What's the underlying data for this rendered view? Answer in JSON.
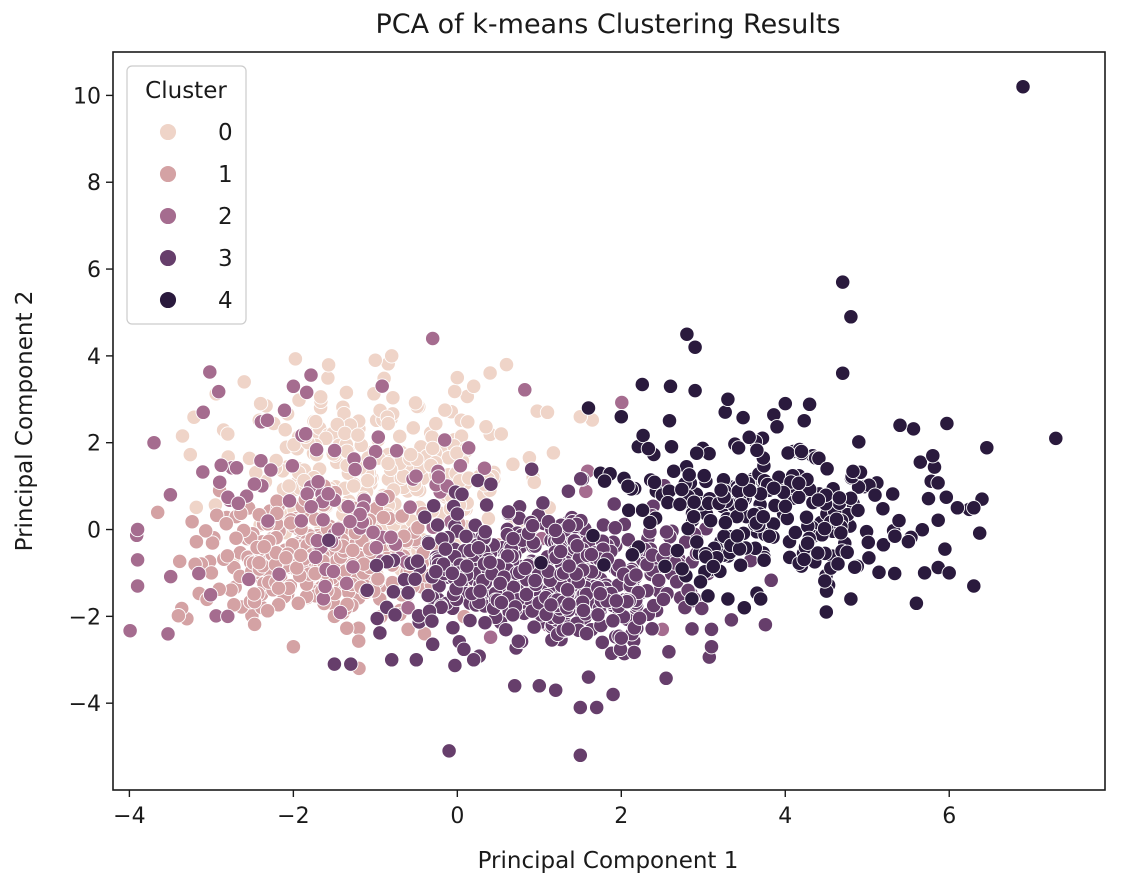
{
  "chart_data": {
    "type": "scatter",
    "title": "PCA of k-means Clustering Results",
    "xlabel": "Principal Component 1",
    "ylabel": "Principal Component 2",
    "xlim": [
      -4.2,
      7.9
    ],
    "ylim": [
      -6.0,
      11.0
    ],
    "xticks": [
      -4,
      -2,
      0,
      2,
      4,
      6
    ],
    "yticks": [
      -4,
      -2,
      0,
      2,
      4,
      6,
      8,
      10
    ],
    "grid": false,
    "legend": {
      "title": "Cluster",
      "placement": "upper-left"
    },
    "series": [
      {
        "name": "0",
        "color": "#efd4c8",
        "clouds": [
          {
            "n": 300,
            "cx": -1.0,
            "cy": 1.3,
            "sx": 0.9,
            "sy": 0.95
          }
        ],
        "points": [
          [
            -0.3,
            4.4
          ],
          [
            0.6,
            3.8
          ],
          [
            -0.8,
            4.0
          ],
          [
            -1.0,
            3.9
          ],
          [
            -2.6,
            3.4
          ],
          [
            -2.4,
            2.9
          ],
          [
            1.5,
            2.6
          ],
          [
            1.1,
            2.7
          ],
          [
            -2.8,
            2.2
          ],
          [
            -2.1,
            2.3
          ],
          [
            0.0,
            3.5
          ],
          [
            0.2,
            3.3
          ]
        ]
      },
      {
        "name": "1",
        "color": "#d4a2a4",
        "clouds": [
          {
            "n": 340,
            "cx": -1.7,
            "cy": -0.7,
            "sx": 0.75,
            "sy": 0.65
          }
        ],
        "points": [
          [
            -2.0,
            -2.7
          ],
          [
            -1.2,
            -3.2
          ],
          [
            -3.0,
            -1.0
          ],
          [
            -2.7,
            -0.2
          ],
          [
            -0.4,
            -2.4
          ],
          [
            -0.6,
            -2.3
          ],
          [
            -2.9,
            0.9
          ],
          [
            -1.5,
            -2.0
          ]
        ]
      },
      {
        "name": "2",
        "color": "#a56c8f",
        "clouds": [
          {
            "n": 110,
            "cx": -1.2,
            "cy": 0.5,
            "sx": 1.3,
            "sy": 1.2
          }
        ],
        "points": [
          [
            -3.7,
            2.0
          ],
          [
            -3.5,
            0.8
          ],
          [
            -3.9,
            0.0
          ],
          [
            -3.9,
            -0.7
          ],
          [
            -3.9,
            -1.3
          ],
          [
            -3.1,
            2.7
          ],
          [
            -2.8,
            -2.0
          ],
          [
            -2.0,
            3.3
          ],
          [
            -0.3,
            4.4
          ],
          [
            1.1,
            -2.2
          ],
          [
            1.7,
            -1.7
          ],
          [
            2.5,
            -2.3
          ],
          [
            -0.6,
            -1.8
          ]
        ]
      },
      {
        "name": "3",
        "color": "#663e6b",
        "clouds": [
          {
            "n": 600,
            "cx": 1.1,
            "cy": -1.1,
            "sx": 0.85,
            "sy": 0.8
          }
        ],
        "points": [
          [
            -0.1,
            -5.1
          ],
          [
            1.5,
            -5.2
          ],
          [
            1.5,
            -4.1
          ],
          [
            1.7,
            -4.1
          ],
          [
            1.9,
            -3.8
          ],
          [
            1.0,
            -3.6
          ],
          [
            0.7,
            -3.6
          ],
          [
            1.2,
            -3.7
          ],
          [
            0.2,
            -3.0
          ],
          [
            -0.5,
            -3.0
          ],
          [
            -0.8,
            -3.0
          ],
          [
            -1.3,
            -3.1
          ],
          [
            -1.5,
            -3.1
          ],
          [
            3.1,
            -2.3
          ],
          [
            3.1,
            -2.7
          ],
          [
            1.6,
            -3.4
          ],
          [
            2.0,
            -2.5
          ],
          [
            -1.1,
            -1.4
          ]
        ]
      },
      {
        "name": "4",
        "color": "#2a1a3d",
        "clouds": [
          {
            "n": 280,
            "cx": 3.9,
            "cy": 0.4,
            "sx": 1.05,
            "sy": 0.9
          }
        ],
        "points": [
          [
            6.9,
            10.2
          ],
          [
            7.3,
            2.1
          ],
          [
            4.7,
            5.7
          ],
          [
            4.8,
            4.9
          ],
          [
            4.7,
            3.6
          ],
          [
            2.8,
            4.5
          ],
          [
            2.9,
            4.2
          ],
          [
            2.6,
            3.3
          ],
          [
            2.9,
            3.2
          ],
          [
            3.3,
            3.0
          ],
          [
            2.0,
            2.6
          ],
          [
            1.6,
            2.8
          ],
          [
            4.0,
            2.9
          ],
          [
            6.4,
            0.7
          ],
          [
            6.3,
            0.5
          ],
          [
            6.1,
            0.5
          ],
          [
            5.7,
            -1.0
          ],
          [
            6.0,
            -1.0
          ],
          [
            6.3,
            -1.3
          ],
          [
            5.6,
            -1.7
          ],
          [
            4.8,
            -1.6
          ],
          [
            4.5,
            -1.9
          ],
          [
            3.5,
            -1.8
          ],
          [
            3.3,
            -1.6
          ],
          [
            3.7,
            -1.6
          ],
          [
            5.8,
            1.7
          ],
          [
            5.4,
            2.4
          ]
        ]
      }
    ]
  }
}
